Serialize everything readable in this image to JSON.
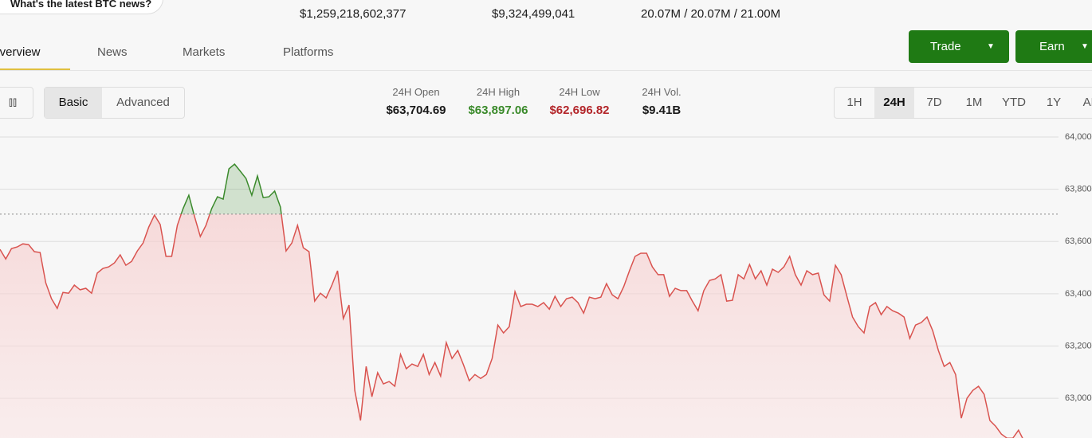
{
  "header": {
    "search_prompt": "What's the latest BTC news?",
    "market_cap": "$1,259,218,602,377",
    "volume": "$9,324,499,041",
    "supply": "20.07M / 20.07M / 21.00M"
  },
  "tabs": [
    "Overview",
    "News",
    "Markets",
    "Platforms"
  ],
  "actions": [
    "Trade",
    "Earn"
  ],
  "view_toggle": [
    "Basic",
    "Advanced"
  ],
  "stats": [
    {
      "label": "24H Open",
      "value": "$63,704.69"
    },
    {
      "label": "24H High",
      "value": "$63,897.06"
    },
    {
      "label": "24H Low",
      "value": "$62,696.82"
    },
    {
      "label": "24H Vol.",
      "value": "$9.41B"
    }
  ],
  "ranges": [
    "1H",
    "24H",
    "7D",
    "1M",
    "YTD",
    "1Y",
    "ALL"
  ],
  "chart_data": {
    "type": "line",
    "ylim": [
      62848,
      64067
    ],
    "yticks": [
      {
        "value": 64000,
        "label": "64,000"
      },
      {
        "value": 63800,
        "label": "63,800"
      },
      {
        "value": 63600,
        "label": "63,600"
      },
      {
        "value": 63400,
        "label": "63,400"
      },
      {
        "value": 63200,
        "label": "63,200"
      },
      {
        "value": 63000,
        "label": "63,000"
      }
    ],
    "grid": true,
    "reference": 63704.69,
    "color_up": "#3b8a2c",
    "color_down": "#d9534f",
    "values": [
      63570,
      63533,
      63573,
      63579,
      63591,
      63588,
      63561,
      63558,
      63442,
      63381,
      63344,
      63405,
      63402,
      63433,
      63415,
      63421,
      63402,
      63479,
      63497,
      63503,
      63518,
      63549,
      63509,
      63524,
      63564,
      63594,
      63655,
      63701,
      63665,
      63543,
      63543,
      63662,
      63726,
      63777,
      63695,
      63619,
      63662,
      63726,
      63771,
      63762,
      63878,
      63896,
      63869,
      63841,
      63777,
      63851,
      63768,
      63771,
      63793,
      63732,
      63564,
      63594,
      63662,
      63576,
      63561,
      63372,
      63402,
      63384,
      63433,
      63488,
      63305,
      63357,
      63030,
      62915,
      63122,
      63006,
      63098,
      63055,
      63064,
      63046,
      63168,
      63113,
      63131,
      63122,
      63168,
      63091,
      63137,
      63085,
      63213,
      63152,
      63183,
      63128,
      63067,
      63091,
      63076,
      63091,
      63152,
      63280,
      63250,
      63274,
      63408,
      63351,
      63360,
      63360,
      63351,
      63366,
      63341,
      63390,
      63351,
      63381,
      63387,
      63366,
      63326,
      63387,
      63381,
      63387,
      63439,
      63396,
      63381,
      63427,
      63488,
      63543,
      63555,
      63555,
      63503,
      63473,
      63473,
      63390,
      63421,
      63412,
      63412,
      63372,
      63335,
      63412,
      63451,
      63457,
      63473,
      63372,
      63375,
      63473,
      63457,
      63512,
      63457,
      63488,
      63433,
      63494,
      63482,
      63503,
      63543,
      63473,
      63433,
      63488,
      63473,
      63479,
      63396,
      63372,
      63509,
      63473,
      63390,
      63311,
      63274,
      63250,
      63351,
      63366,
      63320,
      63351,
      63335,
      63326,
      63311,
      63229,
      63280,
      63290,
      63311,
      63259,
      63183,
      63122,
      63137,
      63091,
      62924,
      63000,
      63030,
      63046,
      63015,
      62915,
      62893,
      62863,
      62847,
      62847,
      62878,
      62835
    ]
  }
}
